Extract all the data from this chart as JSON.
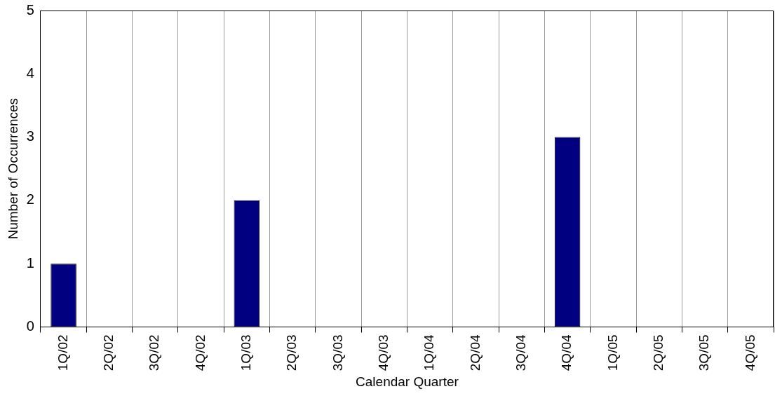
{
  "chart_data": {
    "type": "bar",
    "xlabel": "Calendar Quarter",
    "ylabel": "Number of Occurrences",
    "categories": [
      "1Q/02",
      "2Q/02",
      "3Q/02",
      "4Q/02",
      "1Q/03",
      "2Q/03",
      "3Q/03",
      "4Q/03",
      "1Q/04",
      "2Q/04",
      "3Q/04",
      "4Q/04",
      "1Q/05",
      "2Q/05",
      "3Q/05",
      "4Q/05"
    ],
    "values": [
      1,
      0,
      0,
      0,
      2,
      0,
      0,
      0,
      0,
      0,
      0,
      3,
      0,
      0,
      0,
      0
    ],
    "color": "#000080",
    "ylim": [
      0,
      5
    ],
    "yticks": [
      0,
      1,
      2,
      3,
      4,
      5
    ],
    "grid": "x",
    "legend": false
  }
}
